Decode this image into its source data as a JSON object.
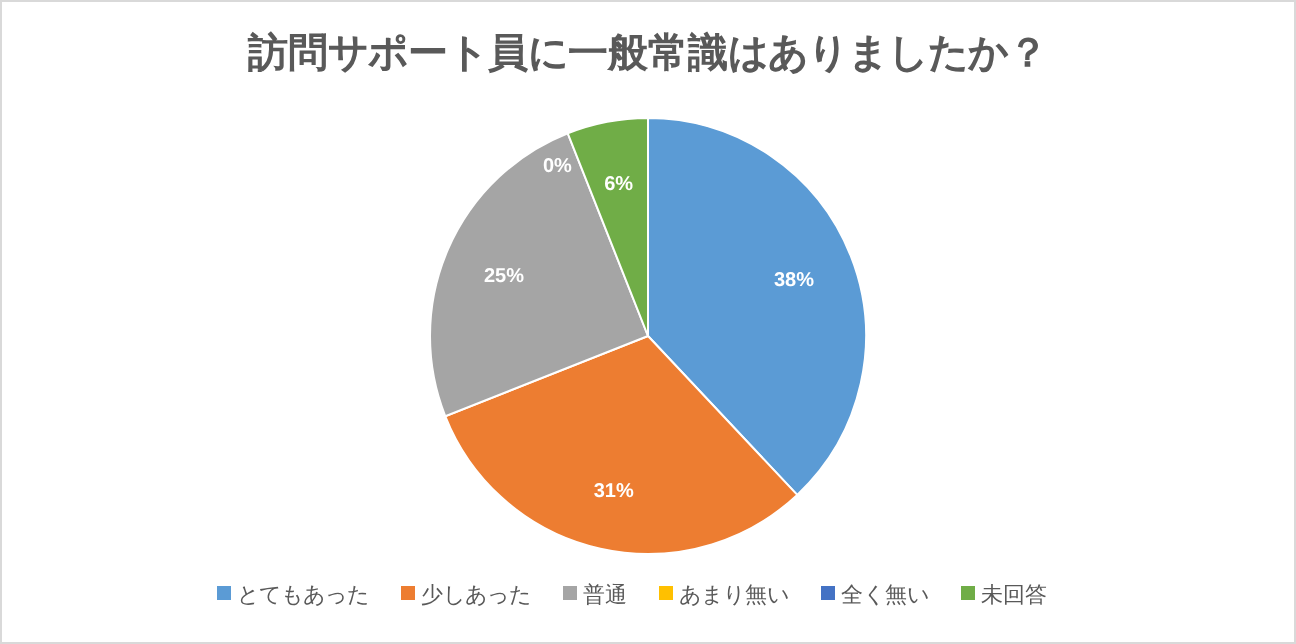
{
  "chart_data": {
    "type": "pie",
    "title": "訪問サポート員に一般常識はありましたか？",
    "categories": [
      "とてもあった",
      "少しあった",
      "普通",
      "あまり無い",
      "全く無い",
      "未回答"
    ],
    "values": [
      38,
      31,
      25,
      0,
      0,
      6
    ],
    "colors": [
      "#5b9bd5",
      "#ed7d31",
      "#a5a5a5",
      "#ffc000",
      "#4472c4",
      "#70ad47"
    ],
    "value_labels": [
      "38%",
      "31%",
      "25%",
      "0%",
      null,
      "6%"
    ],
    "legend": "bottom"
  }
}
